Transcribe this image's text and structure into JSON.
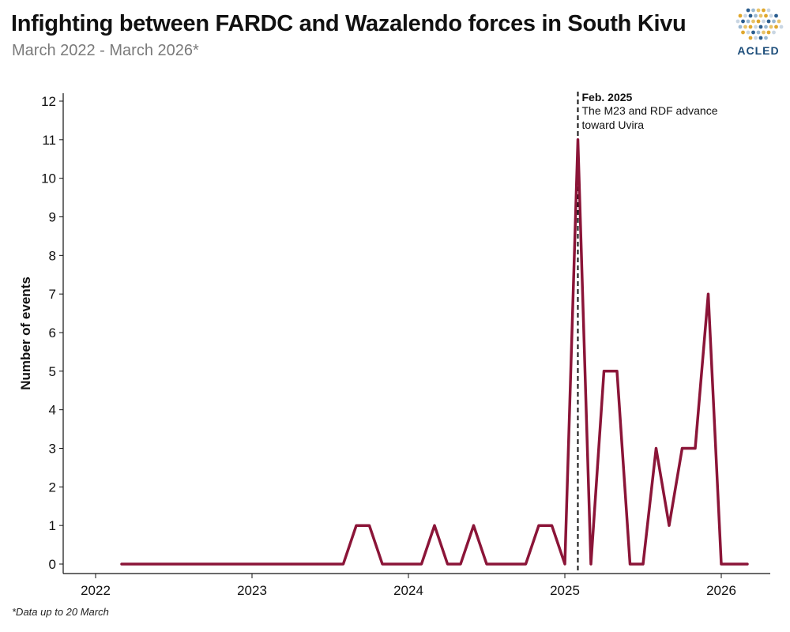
{
  "header": {
    "title": "Infighting between FARDC and Wazalendo forces in South Kivu",
    "subtitle": "March 2022  - March 2026*"
  },
  "logo": {
    "text": "ACLED",
    "icon": "acled-globe-icon"
  },
  "footnote": "*Data up to 20 March",
  "colors": {
    "line": "#8B1538",
    "axis": "#111111",
    "annotation": "#111111"
  },
  "chart_data": {
    "type": "line",
    "title": "Infighting between FARDC and Wazalendo forces in South Kivu",
    "subtitle": "March 2022  - March 2026*",
    "xlabel": "",
    "ylabel": "Number of events",
    "x_ticks": [
      "2022",
      "2023",
      "2024",
      "2025",
      "2026"
    ],
    "y_ticks": [
      0,
      1,
      2,
      3,
      4,
      5,
      6,
      7,
      8,
      9,
      10,
      11,
      12
    ],
    "ylim": [
      0,
      12
    ],
    "xlim": [
      "2022-03",
      "2026-03"
    ],
    "grid": false,
    "series": [
      {
        "name": "",
        "x": [
          "2022-03",
          "2022-04",
          "2022-05",
          "2022-06",
          "2022-07",
          "2022-08",
          "2022-09",
          "2022-10",
          "2022-11",
          "2022-12",
          "2023-01",
          "2023-02",
          "2023-03",
          "2023-04",
          "2023-05",
          "2023-06",
          "2023-07",
          "2023-08",
          "2023-09",
          "2023-10",
          "2023-11",
          "2023-12",
          "2024-01",
          "2024-02",
          "2024-03",
          "2024-04",
          "2024-05",
          "2024-06",
          "2024-07",
          "2024-08",
          "2024-09",
          "2024-10",
          "2024-11",
          "2024-12",
          "2025-01",
          "2025-02",
          "2025-03",
          "2025-04",
          "2025-05",
          "2025-06",
          "2025-07",
          "2025-08",
          "2025-09",
          "2025-10",
          "2025-11",
          "2025-12",
          "2026-01",
          "2026-02",
          "2026-03"
        ],
        "values": [
          0,
          0,
          0,
          0,
          0,
          0,
          0,
          0,
          0,
          0,
          0,
          0,
          0,
          0,
          0,
          0,
          0,
          0,
          1,
          1,
          0,
          0,
          0,
          0,
          1,
          0,
          0,
          1,
          0,
          0,
          0,
          0,
          1,
          1,
          0,
          11,
          0,
          5,
          5,
          0,
          0,
          3,
          1,
          3,
          3,
          7,
          0,
          0,
          0
        ]
      }
    ],
    "annotations": [
      {
        "x": "2025-02",
        "line": "dashed",
        "label_bold": "Feb. 2025",
        "label_lines": [
          "The M23 and RDF advance",
          "toward Uvira"
        ]
      }
    ]
  }
}
